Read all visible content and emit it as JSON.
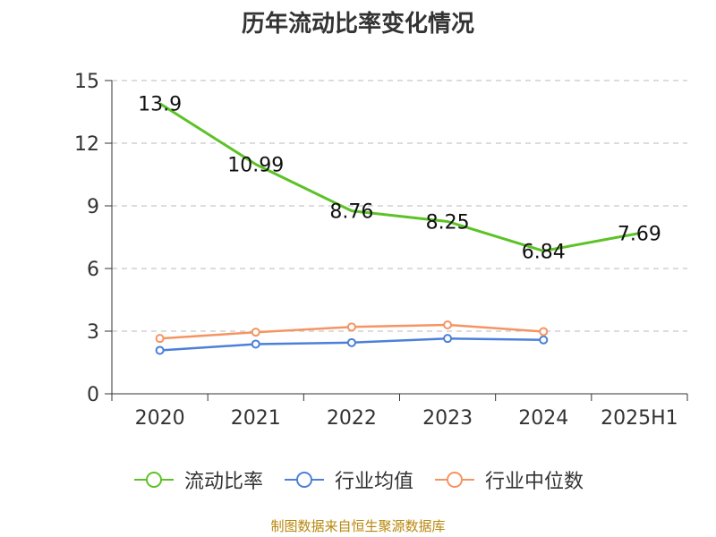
{
  "chart_data": {
    "type": "line",
    "title": "历年流动比率变化情况",
    "categories": [
      "2020",
      "2021",
      "2022",
      "2023",
      "2024",
      "2025H1"
    ],
    "ylim": [
      0,
      15
    ],
    "yticks": [
      0,
      3,
      6,
      9,
      12,
      15
    ],
    "grid": true,
    "legend_position": "bottom",
    "series": [
      {
        "name": "流动比率",
        "values": [
          13.9,
          10.99,
          8.76,
          8.25,
          6.84,
          7.69
        ],
        "labels": [
          "13.9",
          "10.99",
          "8.76",
          "8.25",
          "6.84",
          "7.69"
        ],
        "color": "#5cc227"
      },
      {
        "name": "行业均值",
        "values": [
          2.08,
          2.38,
          2.45,
          2.65,
          2.58,
          null
        ],
        "color": "#4c80d8"
      },
      {
        "name": "行业中位数",
        "values": [
          2.65,
          2.95,
          3.2,
          3.3,
          2.98,
          null
        ],
        "color": "#f59463"
      }
    ]
  },
  "source_note": "制图数据来自恒生聚源数据库"
}
